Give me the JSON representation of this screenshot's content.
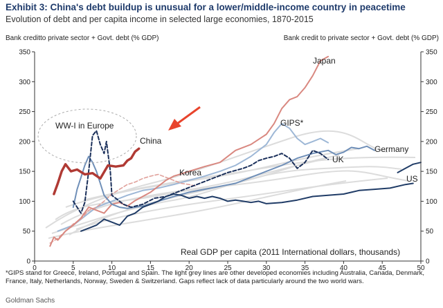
{
  "header": {
    "title": "Exhibit 3: China's debt buildup is unusual for a lower/middle-income country in peacetime",
    "subtitle": "Evolution of debt and per capita income in selected large economies, 1870-2015",
    "left_axis_note": "Bank creditto private sector + Govt. debt (% GDP)",
    "right_axis_note": "Bank credit to private sector + Govt. debt (% GDP)"
  },
  "footnote": "*GIPS  stand for Greece, Ireland, Portugal and Spain. The  light grey lines are other developed economies including Australia, Canada, Denmark, France, Italy, Netherlands, Norway, Sweden & Switzerland. Gaps reflect lack of data particularly around the two world wars.",
  "source": "Goldman Sachs",
  "chart_data": {
    "type": "line",
    "xlabel": "Real GDP per capita (2011 International dollars, thousands)",
    "ylabel": "",
    "xlim": [
      0,
      50
    ],
    "ylim": [
      0,
      350
    ],
    "x_ticks": [
      "0",
      "5",
      "10",
      "15",
      "20",
      "25",
      "30",
      "35",
      "40",
      "45",
      "50"
    ],
    "y_ticks": [
      "0",
      "50",
      "100",
      "150",
      "200",
      "250",
      "300",
      "350"
    ],
    "grid": false,
    "colors": {
      "china": "#b03a34",
      "japan": "#d98880",
      "korea": "#e0a09a",
      "uk": "#1a2f5a",
      "us": "#1f3b66",
      "germany": "#6f8fb8",
      "gips": "#9db7d6",
      "grey": "#dcdcdc",
      "arrow": "#e8442c"
    },
    "annotations": {
      "ww1": "WW-I in Europe",
      "arrow_target": "China"
    },
    "series": [
      {
        "name": "China",
        "style": "solid",
        "points": [
          [
            2.5,
            112
          ],
          [
            3,
            130
          ],
          [
            3.5,
            150
          ],
          [
            4,
            162
          ],
          [
            4.7,
            150
          ],
          [
            5.5,
            153
          ],
          [
            6.5,
            145
          ],
          [
            7.5,
            147
          ],
          [
            8.5,
            138
          ],
          [
            9.5,
            160
          ],
          [
            10.5,
            158
          ],
          [
            11.5,
            160
          ],
          [
            12,
            168
          ],
          [
            12.5,
            172
          ],
          [
            13,
            183
          ],
          [
            13.5,
            188
          ]
        ]
      },
      {
        "name": "Japan",
        "style": "solid",
        "points": [
          [
            2,
            25
          ],
          [
            2.5,
            40
          ],
          [
            3,
            35
          ],
          [
            4,
            50
          ],
          [
            5,
            60
          ],
          [
            6,
            72
          ],
          [
            7,
            90
          ],
          [
            8,
            85
          ],
          [
            9,
            80
          ],
          [
            10,
            95
          ],
          [
            11,
            98
          ],
          [
            12,
            92
          ],
          [
            13,
            101
          ],
          [
            14,
            108
          ],
          [
            15,
            115
          ],
          [
            16,
            125
          ],
          [
            17,
            135
          ],
          [
            18,
            142
          ],
          [
            20,
            150
          ],
          [
            22,
            158
          ],
          [
            24,
            165
          ],
          [
            26,
            185
          ],
          [
            28,
            195
          ],
          [
            30,
            212
          ],
          [
            31,
            230
          ],
          [
            32,
            255
          ],
          [
            33,
            270
          ],
          [
            34,
            275
          ],
          [
            35,
            290
          ],
          [
            36,
            310
          ],
          [
            37,
            335
          ],
          [
            38,
            342
          ]
        ]
      },
      {
        "name": "Korea",
        "style": "dash",
        "points": [
          [
            2,
            30
          ],
          [
            3,
            38
          ],
          [
            4,
            50
          ],
          [
            5,
            62
          ],
          [
            6,
            70
          ],
          [
            7,
            85
          ],
          [
            8,
            90
          ],
          [
            9,
            100
          ],
          [
            10,
            112
          ],
          [
            11,
            120
          ],
          [
            12,
            128
          ],
          [
            13,
            132
          ],
          [
            14,
            138
          ],
          [
            15,
            142
          ],
          [
            16,
            145
          ],
          [
            17,
            140
          ],
          [
            18,
            135
          ],
          [
            19,
            130
          ],
          [
            20,
            128
          ],
          [
            21,
            125
          ]
        ]
      },
      {
        "name": "UK",
        "style": "dash",
        "points": [
          [
            5,
            100
          ],
          [
            5.5,
            90
          ],
          [
            6,
            80
          ],
          [
            6.5,
            98
          ],
          [
            7,
            150
          ],
          [
            7.5,
            210
          ],
          [
            8,
            218
          ],
          [
            8.5,
            195
          ],
          [
            9,
            180
          ],
          [
            9.3,
            200
          ],
          [
            9.5,
            180
          ],
          [
            9.8,
            150
          ],
          [
            10,
            110
          ],
          [
            10.5,
            105
          ],
          [
            11.5,
            95
          ],
          [
            12.5,
            90
          ],
          [
            14,
            95
          ],
          [
            15.5,
            105
          ],
          [
            17,
            108
          ],
          [
            19,
            118
          ],
          [
            21,
            128
          ],
          [
            23,
            138
          ],
          [
            25,
            148
          ],
          [
            27,
            155
          ],
          [
            28,
            160
          ],
          [
            29,
            168
          ],
          [
            30,
            172
          ],
          [
            31,
            175
          ],
          [
            32,
            180
          ],
          [
            33,
            172
          ],
          [
            34,
            155
          ],
          [
            35,
            165
          ],
          [
            36,
            185
          ],
          [
            37,
            180
          ],
          [
            38,
            170
          ]
        ]
      },
      {
        "name": "US",
        "style": "solid",
        "points": [
          [
            6,
            50
          ],
          [
            7,
            55
          ],
          [
            8,
            60
          ],
          [
            9,
            70
          ],
          [
            10,
            65
          ],
          [
            11,
            60
          ],
          [
            12,
            75
          ],
          [
            13,
            80
          ],
          [
            14,
            90
          ],
          [
            15,
            95
          ],
          [
            16,
            100
          ],
          [
            17,
            108
          ],
          [
            18,
            112
          ],
          [
            19,
            110
          ],
          [
            20,
            105
          ],
          [
            21,
            108
          ],
          [
            22,
            105
          ],
          [
            23,
            108
          ],
          [
            24,
            105
          ],
          [
            25,
            100
          ],
          [
            26,
            102
          ],
          [
            27,
            100
          ],
          [
            28,
            98
          ],
          [
            29,
            100
          ],
          [
            30,
            96
          ],
          [
            32,
            98
          ],
          [
            34,
            102
          ],
          [
            36,
            108
          ],
          [
            38,
            110
          ],
          [
            40,
            112
          ],
          [
            42,
            118
          ],
          [
            44,
            120
          ],
          [
            46,
            122
          ],
          [
            48,
            128
          ],
          [
            49,
            130
          ]
        ]
      },
      {
        "name": "US",
        "style": "solid",
        "points": [
          [
            47,
            148
          ],
          [
            48,
            155
          ],
          [
            49,
            162
          ],
          [
            50,
            165
          ]
        ]
      },
      {
        "name": "Germany",
        "style": "solid",
        "points": [
          [
            5,
            90
          ],
          [
            5.5,
            120
          ],
          [
            6,
            140
          ],
          [
            6.5,
            160
          ],
          [
            7,
            175
          ],
          [
            7.5,
            165
          ],
          [
            8,
            150
          ],
          [
            8.5,
            130
          ],
          [
            9,
            110
          ],
          [
            10,
            95
          ],
          [
            11,
            90
          ],
          [
            12,
            88
          ],
          [
            14,
            92
          ],
          [
            16,
            100
          ],
          [
            18,
            108
          ],
          [
            20,
            115
          ],
          [
            22,
            120
          ],
          [
            24,
            125
          ],
          [
            26,
            130
          ],
          [
            28,
            140
          ],
          [
            30,
            150
          ],
          [
            32,
            160
          ],
          [
            34,
            172
          ],
          [
            36,
            180
          ],
          [
            38,
            185
          ],
          [
            39,
            178
          ],
          [
            40,
            182
          ],
          [
            41,
            190
          ],
          [
            42,
            188
          ],
          [
            43,
            192
          ],
          [
            44,
            185
          ]
        ]
      },
      {
        "name": "GIPS",
        "style": "solid",
        "points": [
          [
            3,
            50
          ],
          [
            4,
            55
          ],
          [
            5,
            60
          ],
          [
            6,
            70
          ],
          [
            7,
            80
          ],
          [
            8,
            90
          ],
          [
            9,
            95
          ],
          [
            10,
            100
          ],
          [
            12,
            110
          ],
          [
            14,
            118
          ],
          [
            16,
            122
          ],
          [
            18,
            128
          ],
          [
            20,
            135
          ],
          [
            22,
            142
          ],
          [
            24,
            150
          ],
          [
            26,
            160
          ],
          [
            28,
            175
          ],
          [
            30,
            195
          ],
          [
            31,
            215
          ],
          [
            32,
            230
          ],
          [
            33,
            222
          ],
          [
            34,
            205
          ],
          [
            35,
            195
          ],
          [
            36,
            200
          ],
          [
            37,
            205
          ],
          [
            38,
            198
          ]
        ]
      }
    ]
  }
}
